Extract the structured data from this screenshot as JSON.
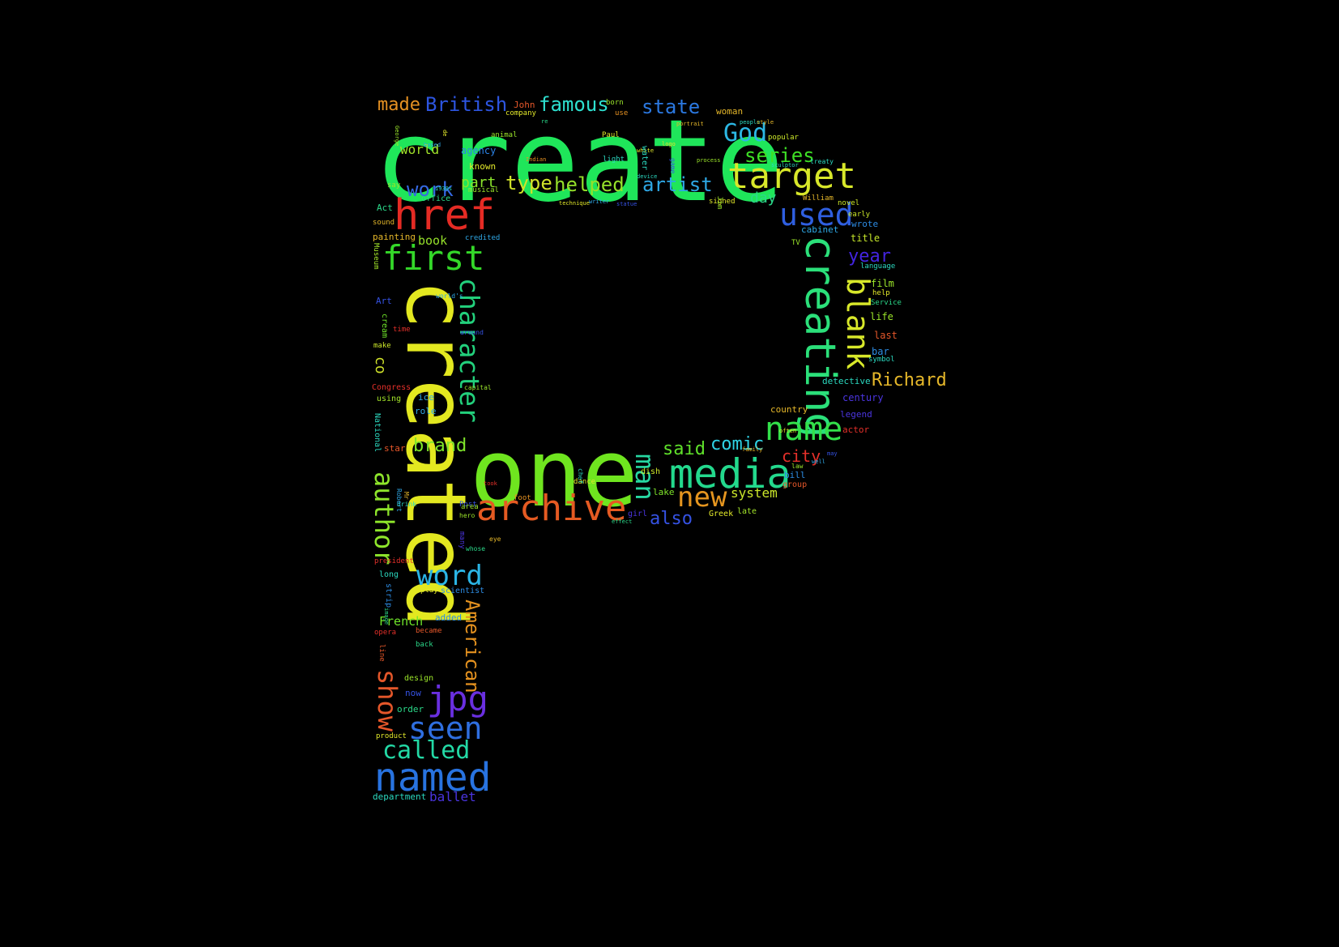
{
  "words": [
    {
      "text": "create",
      "color": "#1fe65a"
    },
    {
      "text": "created",
      "color": "#e3e820"
    },
    {
      "text": "one",
      "color": "#6fe51f"
    },
    {
      "text": "href",
      "color": "#e52b24"
    },
    {
      "text": "target",
      "color": "#d8e82a"
    },
    {
      "text": "creating",
      "color": "#2be07a"
    },
    {
      "text": "media",
      "color": "#23d98d"
    },
    {
      "text": "archive",
      "color": "#e55a22"
    },
    {
      "text": "first",
      "color": "#34d829"
    },
    {
      "text": "character",
      "color": "#22d07c"
    },
    {
      "text": "named",
      "color": "#2873e0"
    },
    {
      "text": "name",
      "color": "#33e04a"
    },
    {
      "text": "jpg",
      "color": "#6a2fe0"
    },
    {
      "text": "used",
      "color": "#2f5fe0"
    },
    {
      "text": "blank",
      "color": "#d8e82a"
    },
    {
      "text": "seen",
      "color": "#2f6fe0"
    },
    {
      "text": "word",
      "color": "#2bb5e6"
    },
    {
      "text": "author",
      "color": "#8ee52b"
    },
    {
      "text": "called",
      "color": "#23d9a5"
    },
    {
      "text": "American",
      "color": "#e5921f"
    },
    {
      "text": "show",
      "color": "#e5572a"
    },
    {
      "text": "man",
      "color": "#27d8a2"
    },
    {
      "text": "new",
      "color": "#e5951f"
    },
    {
      "text": "British",
      "color": "#2d55e0"
    },
    {
      "text": "God",
      "color": "#2cb7e3"
    },
    {
      "text": "famous",
      "color": "#2ee0d0"
    },
    {
      "text": "state",
      "color": "#2b78e0"
    },
    {
      "text": "series",
      "color": "#3ee025"
    },
    {
      "text": "artist",
      "color": "#2ea8e6"
    },
    {
      "text": "helped",
      "color": "#95e02a"
    },
    {
      "text": "type",
      "color": "#d0e22a"
    },
    {
      "text": "work",
      "color": "#3569e3"
    },
    {
      "text": "made",
      "color": "#e59122"
    },
    {
      "text": "brand",
      "color": "#7fe52a"
    },
    {
      "text": "comic",
      "color": "#2fd3e6"
    },
    {
      "text": "said",
      "color": "#5fe02a"
    },
    {
      "text": "city",
      "color": "#e5302a"
    },
    {
      "text": "also",
      "color": "#3552e3"
    },
    {
      "text": "part",
      "color": "#8be52b"
    },
    {
      "text": "world",
      "color": "#a3e52a"
    },
    {
      "text": "year",
      "color": "#4324e0"
    },
    {
      "text": "day",
      "color": "#2bd98a"
    },
    {
      "text": "system",
      "color": "#cce82a"
    },
    {
      "text": "co",
      "color": "#d0e22a"
    },
    {
      "text": "ballet",
      "color": "#4a35e0"
    },
    {
      "text": "book",
      "color": "#95e02a"
    },
    {
      "text": "French",
      "color": "#6fe52a"
    },
    {
      "text": "agency",
      "color": "#2b83e6"
    },
    {
      "text": "known",
      "color": "#e2e82a"
    },
    {
      "text": "title",
      "color": "#c4e52a"
    },
    {
      "text": "wrote",
      "color": "#2d8ce3"
    },
    {
      "text": "cabinet",
      "color": "#2fa8e6"
    },
    {
      "text": "film",
      "color": "#9be52a"
    },
    {
      "text": "life",
      "color": "#9be52a"
    },
    {
      "text": "last",
      "color": "#e5572a"
    },
    {
      "text": "bar",
      "color": "#2d8ce3"
    },
    {
      "text": "century",
      "color": "#4b35e0"
    },
    {
      "text": "detective",
      "color": "#2bd9c0"
    },
    {
      "text": "legend",
      "color": "#4b35e0"
    },
    {
      "text": "actor",
      "color": "#e5302a"
    },
    {
      "text": "country",
      "color": "#e5b72a"
    },
    {
      "text": "bill",
      "color": "#2d8ce3"
    },
    {
      "text": "group",
      "color": "#e5572a"
    },
    {
      "text": "late",
      "color": "#a3e52a"
    },
    {
      "text": "Greek",
      "color": "#e2e82a"
    },
    {
      "text": "lake",
      "color": "#7fe52a"
    },
    {
      "text": "dish",
      "color": "#cce82a"
    },
    {
      "text": "girl",
      "color": "#4b35e0"
    },
    {
      "text": "Act",
      "color": "#2bd98a"
    },
    {
      "text": "sound",
      "color": "#e5b72a"
    },
    {
      "text": "painting",
      "color": "#e5b72a"
    },
    {
      "text": "Museum",
      "color": "#a3e52a"
    },
    {
      "text": "Art",
      "color": "#3552e3"
    },
    {
      "text": "time",
      "color": "#e5302a"
    },
    {
      "text": "cream",
      "color": "#6fe52a"
    },
    {
      "text": "make",
      "color": "#cce82a"
    },
    {
      "text": "Congress",
      "color": "#e5302a"
    },
    {
      "text": "using",
      "color": "#a3e52a"
    },
    {
      "text": "ice",
      "color": "#2fa8e6"
    },
    {
      "text": "role",
      "color": "#2fa8e6"
    },
    {
      "text": "National",
      "color": "#2bd9c0"
    },
    {
      "text": "star",
      "color": "#e5572a"
    },
    {
      "text": "president",
      "color": "#e5302a"
    },
    {
      "text": "long",
      "color": "#2bd9c0"
    },
    {
      "text": "strip",
      "color": "#2d8ce3"
    },
    {
      "text": "play",
      "color": "#e2e82a"
    },
    {
      "text": "scientist",
      "color": "#2d8ce3"
    },
    {
      "text": "added",
      "color": "#2d8ce3"
    },
    {
      "text": "opera",
      "color": "#e5302a"
    },
    {
      "text": "became",
      "color": "#e5572a"
    },
    {
      "text": "back",
      "color": "#2bd98a"
    },
    {
      "text": "line",
      "color": "#e5572a"
    },
    {
      "text": "design",
      "color": "#9be52a"
    },
    {
      "text": "now",
      "color": "#3552e3"
    },
    {
      "text": "order",
      "color": "#2bd98a"
    },
    {
      "text": "product",
      "color": "#e2e82a"
    },
    {
      "text": "department",
      "color": "#2bd9c0"
    },
    {
      "text": "John",
      "color": "#e5572a"
    },
    {
      "text": "company",
      "color": "#e2e82a"
    },
    {
      "text": "born",
      "color": "#9be52a"
    },
    {
      "text": "use",
      "color": "#e59122"
    },
    {
      "text": "woman",
      "color": "#e5b72a"
    },
    {
      "text": "popular",
      "color": "#cce82a"
    },
    {
      "text": "treaty",
      "color": "#2bd9c0"
    },
    {
      "text": "novel",
      "color": "#cce82a"
    },
    {
      "text": "early",
      "color": "#cce82a"
    },
    {
      "text": "language",
      "color": "#2bd9c0"
    },
    {
      "text": "Service",
      "color": "#2bd98a"
    },
    {
      "text": "help",
      "color": "#e2e82a"
    },
    {
      "text": "symbol",
      "color": "#2bd9c0"
    },
    {
      "text": "William",
      "color": "#e5b72a"
    },
    {
      "text": "TV",
      "color": "#9be52a"
    },
    {
      "text": "signed",
      "color": "#e2e82a"
    },
    {
      "text": "light",
      "color": "#2bd9c0"
    },
    {
      "text": "Paul",
      "color": "#e2e82a"
    },
    {
      "text": "animal",
      "color": "#9be52a"
    },
    {
      "text": "say",
      "color": "#9be52a"
    },
    {
      "text": "office",
      "color": "#2bd98a"
    },
    {
      "text": "credited",
      "color": "#2fa8e6"
    },
    {
      "text": "musical",
      "color": "#9be52a"
    },
    {
      "text": "world's",
      "color": "#2fa8e6"
    },
    {
      "text": "around",
      "color": "#3552e3"
    },
    {
      "text": "capital",
      "color": "#9be52a"
    },
    {
      "text": "Post",
      "color": "#3552e3"
    },
    {
      "text": "drink",
      "color": "#2bd9c0"
    },
    {
      "text": "hero",
      "color": "#9be52a"
    },
    {
      "text": "many",
      "color": "#4b35e0"
    },
    {
      "text": "whose",
      "color": "#2bd98a"
    },
    {
      "text": "area",
      "color": "#9be52a"
    },
    {
      "text": "eye",
      "color": "#e5b72a"
    },
    {
      "text": "foot",
      "color": "#e59122"
    },
    {
      "text": "dance",
      "color": "#e2e82a"
    },
    {
      "text": "chef",
      "color": "#2bd9c0"
    },
    {
      "text": "law",
      "color": "#9be52a"
    },
    {
      "text": "well",
      "color": "#2fa8e6"
    },
    {
      "text": "may",
      "color": "#3552e3"
    },
    {
      "text": "family",
      "color": "#e5b72a"
    },
    {
      "text": "often",
      "color": "#e2e82a"
    },
    {
      "text": "portrait",
      "color": "#e5b72a"
    },
    {
      "text": "logo",
      "color": "#e2e82a"
    },
    {
      "text": "people",
      "color": "#2bd9c0"
    },
    {
      "text": "style",
      "color": "#e5b72a"
    },
    {
      "text": "white",
      "color": "#e2e82a"
    },
    {
      "text": "water",
      "color": "#2bd9c0"
    },
    {
      "text": "game",
      "color": "#3552e3"
    },
    {
      "text": "process",
      "color": "#9be52a"
    },
    {
      "text": "sculptor",
      "color": "#2bd9c0"
    },
    {
      "text": "device",
      "color": "#2bd9c0"
    },
    {
      "text": "statue",
      "color": "#3552e3"
    },
    {
      "text": "technique",
      "color": "#e2e82a"
    },
    {
      "text": "writer",
      "color": "#2fa8e6"
    },
    {
      "text": "Indian",
      "color": "#e59122"
    },
    {
      "text": "1930s",
      "color": "#2bd9c0"
    },
    {
      "text": "based",
      "color": "#2fa8e6"
    },
    {
      "text": "effect",
      "color": "#2bd98a"
    },
    {
      "text": "Robert",
      "color": "#2fa8e6"
    },
    {
      "text": "Mr",
      "color": "#e5b72a"
    },
    {
      "text": "took",
      "color": "#e5302a"
    },
    {
      "text": "Jim",
      "color": "#9be52a"
    },
    {
      "text": "re",
      "color": "#2bd98a"
    },
    {
      "text": "de",
      "color": "#e2e82a"
    },
    {
      "text": "George",
      "color": "#9be52a"
    },
    {
      "text": "image",
      "color": "#2bd98a"
    },
    {
      "text": "Richard",
      "color": "#e5b72a"
    },
    {
      "text": "I",
      "color": "#e2e82a"
    }
  ]
}
